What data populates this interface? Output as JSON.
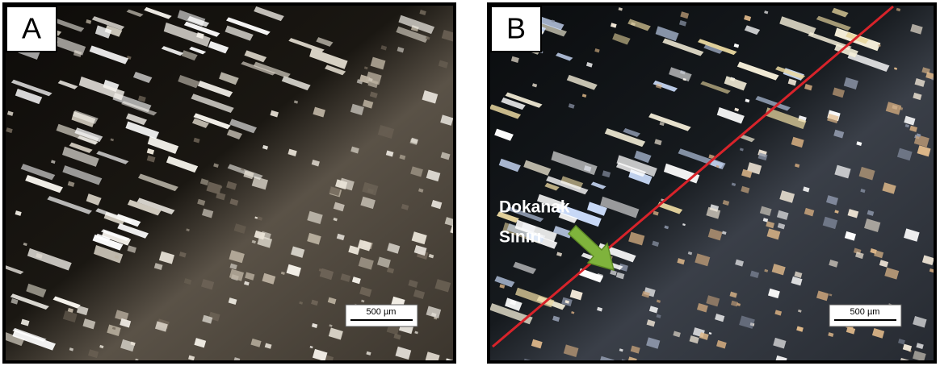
{
  "panels": [
    {
      "label": "A",
      "scale_bar": "500 µm"
    },
    {
      "label": "B",
      "scale_bar": "500 µm",
      "annotation": {
        "line1": "Dokanak",
        "line2": "Sınırı"
      }
    }
  ]
}
